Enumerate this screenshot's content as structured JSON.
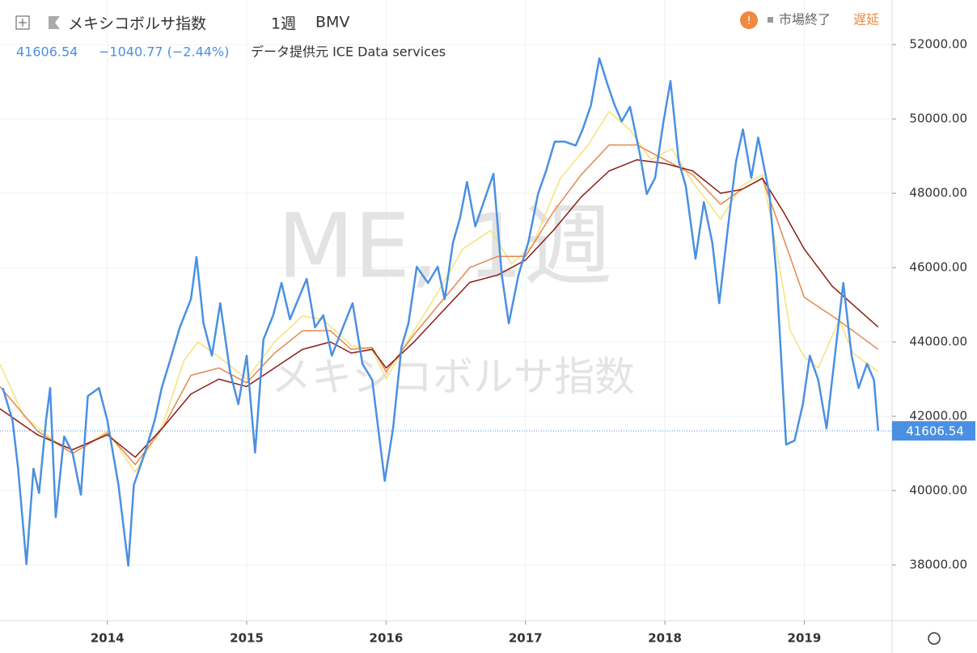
{
  "chart_data": {
    "type": "line",
    "title": "メキシコボルサ指数",
    "interval": "1週",
    "exchange": "BMV",
    "status": "市場終了",
    "delay": "遅延",
    "last_price": 41606.54,
    "change": "−1040.77 (−2.44%)",
    "source": "データ提供元 ICE Data services",
    "watermark": "ME, 1週",
    "xlim": [
      2013.23,
      2019.63
    ],
    "xticks": [
      2014,
      2015,
      2016,
      2017,
      2018,
      2019
    ],
    "ylim": [
      36500,
      53200
    ],
    "yticks": [
      {
        "value": 38000,
        "label": "38000.00"
      },
      {
        "value": 40000,
        "label": "40000.00"
      },
      {
        "value": 42000,
        "label": "42000.00"
      },
      {
        "value": 44000,
        "label": "44000.00"
      },
      {
        "value": 46000,
        "label": "46000.00"
      },
      {
        "value": 48000,
        "label": "48000.00"
      },
      {
        "value": 50000,
        "label": "50000.00"
      },
      {
        "value": 52000,
        "label": "52000.00"
      }
    ],
    "grid": true,
    "series": [
      {
        "color": "#f5e27a",
        "x": [
          2013.23,
          2013.4,
          2013.6,
          2013.75,
          2014.0,
          2014.2,
          2014.4,
          2014.55,
          2014.65,
          2014.8,
          2015.0,
          2015.2,
          2015.4,
          2015.55,
          2015.75,
          2015.9,
          2016.0,
          2016.15,
          2016.35,
          2016.55,
          2016.75,
          2016.9,
          2017.05,
          2017.25,
          2017.45,
          2017.6,
          2017.75,
          2017.9,
          2018.05,
          2018.2,
          2018.4,
          2018.55,
          2018.7,
          2018.8,
          2018.9,
          2019.0,
          2019.1,
          2019.25,
          2019.35,
          2019.53
        ],
        "values": [
          43400,
          42000,
          41400,
          41000,
          41600,
          40500,
          41800,
          43500,
          44000,
          43600,
          43000,
          44000,
          44700,
          44600,
          43900,
          43800,
          43000,
          44000,
          45200,
          46500,
          47000,
          46100,
          46600,
          48400,
          49300,
          50200,
          49700,
          48900,
          49200,
          48300,
          47300,
          48200,
          48500,
          46500,
          44300,
          43600,
          43300,
          44600,
          43700,
          43200
        ]
      },
      {
        "color": "#e5874e",
        "x": [
          2013.23,
          2013.5,
          2013.75,
          2014.0,
          2014.2,
          2014.4,
          2014.6,
          2014.8,
          2015.0,
          2015.2,
          2015.4,
          2015.6,
          2015.75,
          2015.9,
          2016.0,
          2016.2,
          2016.4,
          2016.6,
          2016.8,
          2017.0,
          2017.2,
          2017.4,
          2017.6,
          2017.8,
          2018.0,
          2018.2,
          2018.4,
          2018.55,
          2018.7,
          2018.85,
          2019.0,
          2019.2,
          2019.35,
          2019.53
        ],
        "values": [
          42800,
          41600,
          41000,
          41550,
          40700,
          41700,
          43100,
          43300,
          42900,
          43700,
          44300,
          44300,
          43800,
          43850,
          43200,
          44200,
          45100,
          46000,
          46300,
          46300,
          47500,
          48500,
          49300,
          49300,
          48900,
          48500,
          47700,
          48100,
          48400,
          46800,
          45200,
          44700,
          44300,
          43800
        ]
      },
      {
        "color": "#8b1c15",
        "x": [
          2013.23,
          2013.5,
          2013.75,
          2014.0,
          2014.2,
          2014.4,
          2014.6,
          2014.8,
          2015.0,
          2015.2,
          2015.4,
          2015.6,
          2015.75,
          2015.9,
          2016.0,
          2016.2,
          2016.4,
          2016.6,
          2016.8,
          2017.0,
          2017.2,
          2017.4,
          2017.6,
          2017.8,
          2018.0,
          2018.2,
          2018.4,
          2018.55,
          2018.7,
          2018.85,
          2019.0,
          2019.2,
          2019.35,
          2019.53
        ],
        "values": [
          42200,
          41500,
          41100,
          41500,
          40900,
          41700,
          42600,
          43000,
          42800,
          43300,
          43800,
          44000,
          43700,
          43800,
          43300,
          44000,
          44800,
          45600,
          45800,
          46200,
          47000,
          47900,
          48600,
          48900,
          48800,
          48600,
          48000,
          48100,
          48400,
          47500,
          46500,
          45500,
          45000,
          44400
        ]
      },
      {
        "color": "#4a90e2",
        "x": [
          2013.25,
          2013.32,
          2013.36,
          2013.42,
          2013.47,
          2013.51,
          2013.56,
          2013.59,
          2013.63,
          2013.69,
          2013.75,
          2013.81,
          2013.86,
          2013.94,
          2014.0,
          2014.08,
          2014.15,
          2014.19,
          2014.27,
          2014.34,
          2014.39,
          2014.46,
          2014.52,
          2014.6,
          2014.64,
          2014.69,
          2014.75,
          2014.81,
          2014.88,
          2014.94,
          2015.0,
          2015.06,
          2015.12,
          2015.19,
          2015.25,
          2015.31,
          2015.37,
          2015.43,
          2015.49,
          2015.55,
          2015.61,
          2015.69,
          2015.76,
          2015.83,
          2015.9,
          2015.99,
          2016.05,
          2016.11,
          2016.16,
          2016.22,
          2016.3,
          2016.37,
          2016.42,
          2016.48,
          2016.53,
          2016.58,
          2016.64,
          2016.7,
          2016.77,
          2016.83,
          2016.88,
          2016.95,
          2017.02,
          2017.09,
          2017.15,
          2017.21,
          2017.28,
          2017.36,
          2017.41,
          2017.47,
          2017.53,
          2017.59,
          2017.64,
          2017.69,
          2017.75,
          2017.82,
          2017.87,
          2017.93,
          2017.99,
          2018.04,
          2018.1,
          2018.15,
          2018.22,
          2018.28,
          2018.34,
          2018.39,
          2018.46,
          2018.51,
          2018.56,
          2018.62,
          2018.67,
          2018.75,
          2018.8,
          2018.87,
          2018.93,
          2018.99,
          2019.04,
          2019.1,
          2019.16,
          2019.22,
          2019.28,
          2019.34,
          2019.39,
          2019.45,
          2019.5,
          2019.53
        ],
        "values": [
          42761,
          41891,
          40587,
          38022,
          40587,
          39935,
          41891,
          42761,
          39283,
          41457,
          41022,
          39891,
          42543,
          42761,
          41891,
          40152,
          37978,
          40152,
          41022,
          41891,
          42761,
          43630,
          44391,
          45152,
          46283,
          44500,
          43630,
          45043,
          43196,
          42326,
          43630,
          41022,
          44065,
          44717,
          45587,
          44609,
          45152,
          45696,
          44391,
          44717,
          43630,
          44391,
          45043,
          43413,
          42978,
          40261,
          41674,
          43848,
          44500,
          46022,
          45587,
          46022,
          45152,
          46674,
          47326,
          48304,
          47109,
          47761,
          48522,
          45804,
          44500,
          45804,
          46674,
          47978,
          48630,
          49391,
          49391,
          49283,
          49717,
          50370,
          51630,
          50913,
          50370,
          49935,
          50326,
          49065,
          47978,
          48413,
          49935,
          51022,
          48848,
          48196,
          46239,
          47761,
          46674,
          45043,
          47326,
          48848,
          49717,
          48413,
          49500,
          47978,
          45804,
          41239,
          41348,
          42326,
          43630,
          42978,
          41674,
          43630,
          45587,
          43630,
          42761,
          43413,
          42978,
          41606.54
        ]
      }
    ]
  }
}
